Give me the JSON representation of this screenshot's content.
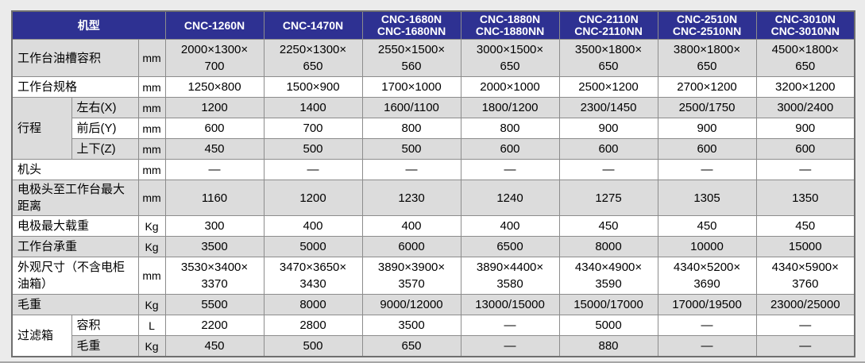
{
  "colors": {
    "header_bg": "#2e3192",
    "header_text": "#ffffff",
    "stripe": "#dcdcdc",
    "row_white": "#ffffff",
    "border": "#8c8c8c",
    "page_bg": "#ebebeb"
  },
  "table": {
    "corner_label": "机型",
    "models": [
      "CNC-1260N",
      "CNC-1470N",
      "CNC-1680N\nCNC-1680NN",
      "CNC-1880N\nCNC-1880NN",
      "CNC-2110N\nCNC-2110NN",
      "CNC-2510N\nCNC-2510NN",
      "CNC-3010N\nCNC-3010NN"
    ],
    "rows": [
      {
        "label": "工作台油槽容积",
        "unit": "mm",
        "values": [
          "2000×1300×\n700",
          "2250×1300×\n650",
          "2550×1500×\n560",
          "3000×1500×\n650",
          "3500×1800×\n650",
          "3800×1800×\n650",
          "4500×1800×\n650"
        ]
      },
      {
        "label": "工作台规格",
        "unit": "mm",
        "values": [
          "1250×800",
          "1500×900",
          "1700×1000",
          "2000×1000",
          "2500×1200",
          "2700×1200",
          "3200×1200"
        ]
      },
      {
        "group": "行程",
        "gspan": 3,
        "sublabel": "左右(X)",
        "unit": "mm",
        "values": [
          "1200",
          "1400",
          "1600/1100",
          "1800/1200",
          "2300/1450",
          "2500/1750",
          "3000/2400"
        ]
      },
      {
        "sublabel": "前后(Y)",
        "unit": "mm",
        "values": [
          "600",
          "700",
          "800",
          "800",
          "900",
          "900",
          "900"
        ]
      },
      {
        "sublabel": "上下(Z)",
        "unit": "mm",
        "values": [
          "450",
          "500",
          "500",
          "600",
          "600",
          "600",
          "600"
        ]
      },
      {
        "label": "机头",
        "unit": "mm",
        "values": [
          "—",
          "—",
          "—",
          "—",
          "—",
          "—",
          "—"
        ]
      },
      {
        "label": "电极头至工作台最大距离",
        "unit": "mm",
        "values": [
          "1160",
          "1200",
          "1230",
          "1240",
          "1275",
          "1305",
          "1350"
        ]
      },
      {
        "label": "电极最大载重",
        "unit": "Kg",
        "values": [
          "300",
          "400",
          "400",
          "400",
          "450",
          "450",
          "450"
        ]
      },
      {
        "label": "工作台承重",
        "unit": "Kg",
        "values": [
          "3500",
          "5000",
          "6000",
          "6500",
          "8000",
          "10000",
          "15000"
        ]
      },
      {
        "label": "外观尺寸（不含电柜油箱）",
        "unit": "mm",
        "values": [
          "3530×3400×\n3370",
          "3470×3650×\n3430",
          "3890×3900×\n3570",
          "3890×4400×\n3580",
          "4340×4900×\n3590",
          "4340×5200×\n3690",
          "4340×5900×\n3760"
        ]
      },
      {
        "label": "毛重",
        "unit": "Kg",
        "values": [
          "5500",
          "8000",
          "9000/12000",
          "13000/15000",
          "15000/17000",
          "17000/19500",
          "23000/25000"
        ]
      },
      {
        "group": "过滤箱",
        "gspan": 2,
        "sublabel": "容积",
        "unit": "L",
        "values": [
          "2200",
          "2800",
          "3500",
          "—",
          "5000",
          "—",
          "—"
        ]
      },
      {
        "sublabel": "毛重",
        "unit": "Kg",
        "values": [
          "450",
          "500",
          "650",
          "—",
          "880",
          "—",
          "—"
        ]
      }
    ]
  }
}
